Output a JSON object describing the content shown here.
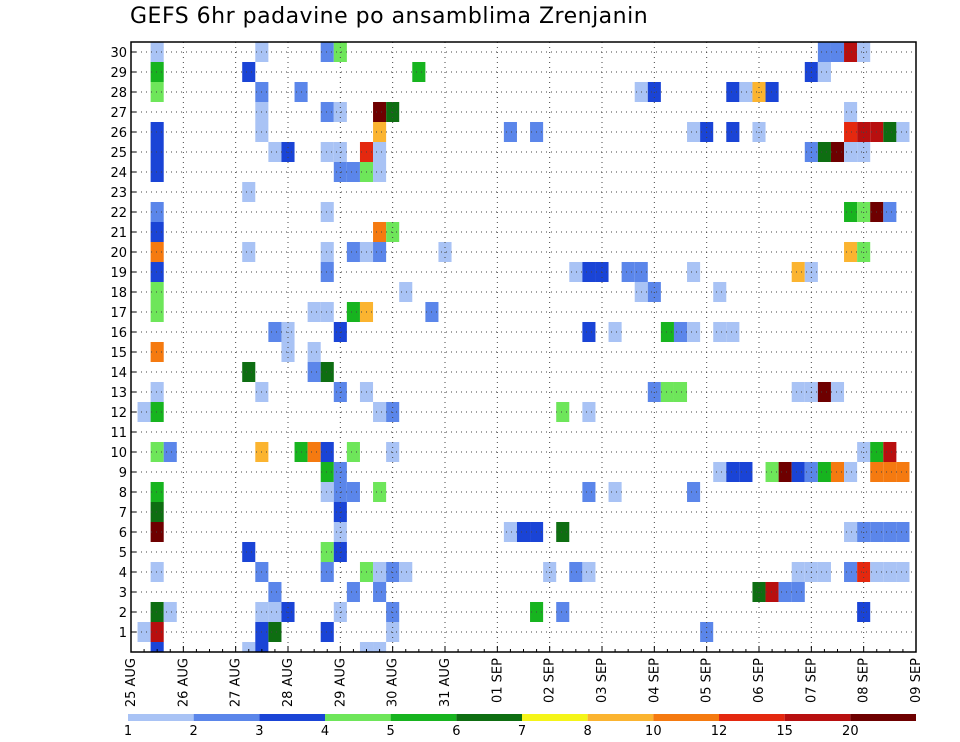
{
  "chart_data": {
    "type": "heatmap",
    "title": "GEFS 6hr padavine po ansamblima Zrenjanin",
    "xlabel": "",
    "ylabel": "",
    "y_ticks": [
      "1",
      "2",
      "3",
      "4",
      "5",
      "6",
      "7",
      "8",
      "9",
      "10",
      "11",
      "12",
      "13",
      "14",
      "15",
      "16",
      "17",
      "18",
      "19",
      "20",
      "21",
      "22",
      "23",
      "24",
      "25",
      "26",
      "27",
      "28",
      "29",
      "30"
    ],
    "x_ticks": [
      "25 AUG",
      "26 AUG",
      "27 AUG",
      "28 AUG",
      "29 AUG",
      "30 AUG",
      "31 AUG",
      "01 SEP",
      "02 SEP",
      "03 SEP",
      "04 SEP",
      "05 SEP",
      "06 SEP",
      "07 SEP",
      "08 SEP",
      "09 SEP"
    ],
    "x_range_days": [
      0,
      15
    ],
    "y_range": [
      0,
      30
    ],
    "grid": true,
    "legend": {
      "position": "bottom",
      "labels": [
        "1",
        "2",
        "3",
        "4",
        "5",
        "6",
        "7",
        "8",
        "10",
        "12",
        "15",
        "20"
      ],
      "colors": [
        "#a9c3f5",
        "#5b86ea",
        "#1a44d6",
        "#6ee65a",
        "#17b41f",
        "#0e6e12",
        "#f5f518",
        "#fbb430",
        "#f57a10",
        "#e4280f",
        "#b80f0f",
        "#6e0000"
      ]
    },
    "cells": [
      {
        "m": 30,
        "d": 0.5,
        "v": 1
      },
      {
        "m": 30,
        "d": 2.5,
        "v": 1
      },
      {
        "m": 30,
        "d": 3.75,
        "v": 2
      },
      {
        "m": 30,
        "d": 4.0,
        "v": 4
      },
      {
        "m": 30,
        "d": 13.25,
        "v": 2
      },
      {
        "m": 30,
        "d": 13.5,
        "v": 2
      },
      {
        "m": 30,
        "d": 13.75,
        "v": 15
      },
      {
        "m": 30,
        "d": 14.0,
        "v": 1
      },
      {
        "m": 29,
        "d": 0.5,
        "v": 5
      },
      {
        "m": 29,
        "d": 2.25,
        "v": 3
      },
      {
        "m": 29,
        "d": 5.5,
        "v": 5
      },
      {
        "m": 29,
        "d": 13.0,
        "v": 3
      },
      {
        "m": 29,
        "d": 13.25,
        "v": 1
      },
      {
        "m": 28,
        "d": 0.5,
        "v": 4
      },
      {
        "m": 28,
        "d": 2.5,
        "v": 2
      },
      {
        "m": 28,
        "d": 3.25,
        "v": 2
      },
      {
        "m": 28,
        "d": 9.75,
        "v": 1
      },
      {
        "m": 28,
        "d": 10.0,
        "v": 3
      },
      {
        "m": 28,
        "d": 11.5,
        "v": 3
      },
      {
        "m": 28,
        "d": 11.75,
        "v": 1
      },
      {
        "m": 28,
        "d": 12.0,
        "v": 8
      },
      {
        "m": 28,
        "d": 12.25,
        "v": 3
      },
      {
        "m": 27,
        "d": 2.5,
        "v": 1
      },
      {
        "m": 27,
        "d": 3.75,
        "v": 2
      },
      {
        "m": 27,
        "d": 4.0,
        "v": 1
      },
      {
        "m": 27,
        "d": 4.75,
        "v": 20
      },
      {
        "m": 27,
        "d": 5.0,
        "v": 6
      },
      {
        "m": 27,
        "d": 13.75,
        "v": 1
      },
      {
        "m": 26,
        "d": 0.5,
        "v": 3
      },
      {
        "m": 26,
        "d": 2.5,
        "v": 1
      },
      {
        "m": 26,
        "d": 4.75,
        "v": 8
      },
      {
        "m": 26,
        "d": 7.25,
        "v": 2
      },
      {
        "m": 26,
        "d": 7.75,
        "v": 2
      },
      {
        "m": 26,
        "d": 10.75,
        "v": 1
      },
      {
        "m": 26,
        "d": 11.0,
        "v": 3
      },
      {
        "m": 26,
        "d": 11.5,
        "v": 3
      },
      {
        "m": 26,
        "d": 12.0,
        "v": 1
      },
      {
        "m": 26,
        "d": 13.75,
        "v": 12
      },
      {
        "m": 26,
        "d": 14.0,
        "v": 15
      },
      {
        "m": 26,
        "d": 14.25,
        "v": 15
      },
      {
        "m": 26,
        "d": 14.5,
        "v": 6
      },
      {
        "m": 26,
        "d": 14.75,
        "v": 1
      },
      {
        "m": 25,
        "d": 0.5,
        "v": 3
      },
      {
        "m": 25,
        "d": 2.75,
        "v": 1
      },
      {
        "m": 25,
        "d": 3.0,
        "v": 3
      },
      {
        "m": 25,
        "d": 3.75,
        "v": 1
      },
      {
        "m": 25,
        "d": 4.0,
        "v": 1
      },
      {
        "m": 25,
        "d": 4.5,
        "v": 12
      },
      {
        "m": 25,
        "d": 4.75,
        "v": 1
      },
      {
        "m": 25,
        "d": 13.0,
        "v": 2
      },
      {
        "m": 25,
        "d": 13.25,
        "v": 6
      },
      {
        "m": 25,
        "d": 13.5,
        "v": 20
      },
      {
        "m": 25,
        "d": 13.75,
        "v": 1
      },
      {
        "m": 25,
        "d": 14.0,
        "v": 1
      },
      {
        "m": 24,
        "d": 0.5,
        "v": 3
      },
      {
        "m": 24,
        "d": 4.0,
        "v": 2
      },
      {
        "m": 24,
        "d": 4.25,
        "v": 2
      },
      {
        "m": 24,
        "d": 4.5,
        "v": 4
      },
      {
        "m": 24,
        "d": 4.75,
        "v": 1
      },
      {
        "m": 23,
        "d": 2.25,
        "v": 1
      },
      {
        "m": 22,
        "d": 0.5,
        "v": 2
      },
      {
        "m": 22,
        "d": 3.75,
        "v": 1
      },
      {
        "m": 22,
        "d": 13.75,
        "v": 5
      },
      {
        "m": 22,
        "d": 14.0,
        "v": 4
      },
      {
        "m": 22,
        "d": 14.25,
        "v": 20
      },
      {
        "m": 22,
        "d": 14.5,
        "v": 2
      },
      {
        "m": 21,
        "d": 0.5,
        "v": 3
      },
      {
        "m": 21,
        "d": 4.75,
        "v": 10
      },
      {
        "m": 21,
        "d": 5.0,
        "v": 4
      },
      {
        "m": 20,
        "d": 0.5,
        "v": 10
      },
      {
        "m": 20,
        "d": 2.25,
        "v": 1
      },
      {
        "m": 20,
        "d": 3.75,
        "v": 1
      },
      {
        "m": 20,
        "d": 4.25,
        "v": 2
      },
      {
        "m": 20,
        "d": 4.5,
        "v": 1
      },
      {
        "m": 20,
        "d": 4.75,
        "v": 2
      },
      {
        "m": 20,
        "d": 6.0,
        "v": 1
      },
      {
        "m": 20,
        "d": 13.75,
        "v": 8
      },
      {
        "m": 20,
        "d": 14.0,
        "v": 4
      },
      {
        "m": 19,
        "d": 0.5,
        "v": 3
      },
      {
        "m": 19,
        "d": 3.75,
        "v": 2
      },
      {
        "m": 19,
        "d": 8.5,
        "v": 1
      },
      {
        "m": 19,
        "d": 8.75,
        "v": 3
      },
      {
        "m": 19,
        "d": 9.0,
        "v": 3
      },
      {
        "m": 19,
        "d": 9.5,
        "v": 2
      },
      {
        "m": 19,
        "d": 9.75,
        "v": 2
      },
      {
        "m": 19,
        "d": 10.75,
        "v": 1
      },
      {
        "m": 19,
        "d": 12.75,
        "v": 8
      },
      {
        "m": 19,
        "d": 13.0,
        "v": 1
      },
      {
        "m": 18,
        "d": 0.5,
        "v": 4
      },
      {
        "m": 18,
        "d": 5.25,
        "v": 1
      },
      {
        "m": 18,
        "d": 9.75,
        "v": 1
      },
      {
        "m": 18,
        "d": 10.0,
        "v": 2
      },
      {
        "m": 18,
        "d": 11.25,
        "v": 1
      },
      {
        "m": 17,
        "d": 0.5,
        "v": 4
      },
      {
        "m": 17,
        "d": 3.5,
        "v": 1
      },
      {
        "m": 17,
        "d": 3.75,
        "v": 1
      },
      {
        "m": 17,
        "d": 4.25,
        "v": 5
      },
      {
        "m": 17,
        "d": 4.5,
        "v": 8
      },
      {
        "m": 17,
        "d": 5.75,
        "v": 2
      },
      {
        "m": 16,
        "d": 2.75,
        "v": 2
      },
      {
        "m": 16,
        "d": 3.0,
        "v": 1
      },
      {
        "m": 16,
        "d": 4.0,
        "v": 3
      },
      {
        "m": 16,
        "d": 8.75,
        "v": 3
      },
      {
        "m": 16,
        "d": 9.25,
        "v": 1
      },
      {
        "m": 16,
        "d": 10.25,
        "v": 5
      },
      {
        "m": 16,
        "d": 10.5,
        "v": 2
      },
      {
        "m": 16,
        "d": 10.75,
        "v": 1
      },
      {
        "m": 16,
        "d": 11.25,
        "v": 1
      },
      {
        "m": 16,
        "d": 11.5,
        "v": 1
      },
      {
        "m": 15,
        "d": 0.5,
        "v": 10
      },
      {
        "m": 15,
        "d": 3.0,
        "v": 1
      },
      {
        "m": 15,
        "d": 3.5,
        "v": 1
      },
      {
        "m": 14,
        "d": 2.25,
        "v": 6
      },
      {
        "m": 14,
        "d": 3.5,
        "v": 2
      },
      {
        "m": 14,
        "d": 3.75,
        "v": 6
      },
      {
        "m": 13,
        "d": 0.5,
        "v": 1
      },
      {
        "m": 13,
        "d": 2.5,
        "v": 1
      },
      {
        "m": 13,
        "d": 4.0,
        "v": 2
      },
      {
        "m": 13,
        "d": 4.5,
        "v": 1
      },
      {
        "m": 13,
        "d": 10.0,
        "v": 2
      },
      {
        "m": 13,
        "d": 10.25,
        "v": 4
      },
      {
        "m": 13,
        "d": 10.5,
        "v": 4
      },
      {
        "m": 13,
        "d": 12.75,
        "v": 1
      },
      {
        "m": 13,
        "d": 13.0,
        "v": 1
      },
      {
        "m": 13,
        "d": 13.25,
        "v": 20
      },
      {
        "m": 13,
        "d": 13.5,
        "v": 1
      },
      {
        "m": 12,
        "d": 0.25,
        "v": 1
      },
      {
        "m": 12,
        "d": 0.5,
        "v": 5
      },
      {
        "m": 12,
        "d": 4.75,
        "v": 1
      },
      {
        "m": 12,
        "d": 5.0,
        "v": 2
      },
      {
        "m": 12,
        "d": 8.25,
        "v": 4
      },
      {
        "m": 12,
        "d": 8.75,
        "v": 1
      },
      {
        "m": 10,
        "d": 0.5,
        "v": 4
      },
      {
        "m": 10,
        "d": 0.75,
        "v": 2
      },
      {
        "m": 10,
        "d": 2.5,
        "v": 8
      },
      {
        "m": 10,
        "d": 3.25,
        "v": 5
      },
      {
        "m": 10,
        "d": 3.5,
        "v": 10
      },
      {
        "m": 10,
        "d": 3.75,
        "v": 3
      },
      {
        "m": 10,
        "d": 4.25,
        "v": 4
      },
      {
        "m": 10,
        "d": 5.0,
        "v": 1
      },
      {
        "m": 10,
        "d": 14.0,
        "v": 1
      },
      {
        "m": 10,
        "d": 14.25,
        "v": 5
      },
      {
        "m": 10,
        "d": 14.5,
        "v": 15
      },
      {
        "m": 9,
        "d": 3.75,
        "v": 5
      },
      {
        "m": 9,
        "d": 4.0,
        "v": 2
      },
      {
        "m": 9,
        "d": 11.25,
        "v": 1
      },
      {
        "m": 9,
        "d": 11.5,
        "v": 3
      },
      {
        "m": 9,
        "d": 11.75,
        "v": 3
      },
      {
        "m": 9,
        "d": 12.25,
        "v": 4
      },
      {
        "m": 9,
        "d": 12.5,
        "v": 20
      },
      {
        "m": 9,
        "d": 12.75,
        "v": 3
      },
      {
        "m": 9,
        "d": 13.0,
        "v": 2
      },
      {
        "m": 9,
        "d": 13.25,
        "v": 5
      },
      {
        "m": 9,
        "d": 13.5,
        "v": 10
      },
      {
        "m": 9,
        "d": 13.75,
        "v": 1
      },
      {
        "m": 9,
        "d": 14.25,
        "v": 10
      },
      {
        "m": 9,
        "d": 14.5,
        "v": 10
      },
      {
        "m": 9,
        "d": 14.75,
        "v": 10
      },
      {
        "m": 8,
        "d": 0.5,
        "v": 5
      },
      {
        "m": 8,
        "d": 3.75,
        "v": 1
      },
      {
        "m": 8,
        "d": 4.0,
        "v": 2
      },
      {
        "m": 8,
        "d": 4.25,
        "v": 2
      },
      {
        "m": 8,
        "d": 4.75,
        "v": 4
      },
      {
        "m": 8,
        "d": 8.75,
        "v": 2
      },
      {
        "m": 8,
        "d": 9.25,
        "v": 1
      },
      {
        "m": 8,
        "d": 10.75,
        "v": 2
      },
      {
        "m": 7,
        "d": 0.5,
        "v": 6
      },
      {
        "m": 7,
        "d": 4.0,
        "v": 3
      },
      {
        "m": 6,
        "d": 0.5,
        "v": 20
      },
      {
        "m": 6,
        "d": 4.0,
        "v": 1
      },
      {
        "m": 6,
        "d": 7.25,
        "v": 1
      },
      {
        "m": 6,
        "d": 7.5,
        "v": 3
      },
      {
        "m": 6,
        "d": 7.75,
        "v": 3
      },
      {
        "m": 6,
        "d": 8.25,
        "v": 6
      },
      {
        "m": 6,
        "d": 13.75,
        "v": 1
      },
      {
        "m": 6,
        "d": 14.0,
        "v": 2
      },
      {
        "m": 6,
        "d": 14.25,
        "v": 2
      },
      {
        "m": 6,
        "d": 14.5,
        "v": 2
      },
      {
        "m": 6,
        "d": 14.75,
        "v": 2
      },
      {
        "m": 5,
        "d": 2.25,
        "v": 3
      },
      {
        "m": 5,
        "d": 3.75,
        "v": 4
      },
      {
        "m": 5,
        "d": 4.0,
        "v": 3
      },
      {
        "m": 4,
        "d": 0.5,
        "v": 1
      },
      {
        "m": 4,
        "d": 2.5,
        "v": 2
      },
      {
        "m": 4,
        "d": 3.75,
        "v": 2
      },
      {
        "m": 4,
        "d": 4.5,
        "v": 4
      },
      {
        "m": 4,
        "d": 4.75,
        "v": 1
      },
      {
        "m": 4,
        "d": 5.0,
        "v": 2
      },
      {
        "m": 4,
        "d": 5.25,
        "v": 1
      },
      {
        "m": 4,
        "d": 8.0,
        "v": 1
      },
      {
        "m": 4,
        "d": 8.5,
        "v": 2
      },
      {
        "m": 4,
        "d": 8.75,
        "v": 1
      },
      {
        "m": 4,
        "d": 12.75,
        "v": 1
      },
      {
        "m": 4,
        "d": 13.0,
        "v": 1
      },
      {
        "m": 4,
        "d": 13.25,
        "v": 1
      },
      {
        "m": 4,
        "d": 13.75,
        "v": 2
      },
      {
        "m": 4,
        "d": 14.0,
        "v": 12
      },
      {
        "m": 4,
        "d": 14.25,
        "v": 1
      },
      {
        "m": 4,
        "d": 14.5,
        "v": 1
      },
      {
        "m": 4,
        "d": 14.75,
        "v": 1
      },
      {
        "m": 3,
        "d": 2.75,
        "v": 2
      },
      {
        "m": 3,
        "d": 4.25,
        "v": 2
      },
      {
        "m": 3,
        "d": 4.75,
        "v": 2
      },
      {
        "m": 3,
        "d": 12.0,
        "v": 6
      },
      {
        "m": 3,
        "d": 12.25,
        "v": 15
      },
      {
        "m": 3,
        "d": 12.5,
        "v": 2
      },
      {
        "m": 3,
        "d": 12.75,
        "v": 2
      },
      {
        "m": 2,
        "d": 0.5,
        "v": 6
      },
      {
        "m": 2,
        "d": 0.75,
        "v": 1
      },
      {
        "m": 2,
        "d": 2.5,
        "v": 1
      },
      {
        "m": 2,
        "d": 2.75,
        "v": 1
      },
      {
        "m": 2,
        "d": 3.0,
        "v": 3
      },
      {
        "m": 2,
        "d": 4.0,
        "v": 1
      },
      {
        "m": 2,
        "d": 5.0,
        "v": 2
      },
      {
        "m": 2,
        "d": 7.75,
        "v": 5
      },
      {
        "m": 2,
        "d": 8.25,
        "v": 2
      },
      {
        "m": 2,
        "d": 14.0,
        "v": 3
      },
      {
        "m": 1,
        "d": 0.25,
        "v": 1
      },
      {
        "m": 1,
        "d": 0.5,
        "v": 15
      },
      {
        "m": 1,
        "d": 2.5,
        "v": 3
      },
      {
        "m": 1,
        "d": 2.75,
        "v": 6
      },
      {
        "m": 1,
        "d": 3.75,
        "v": 3
      },
      {
        "m": 1,
        "d": 5.0,
        "v": 1
      },
      {
        "m": 1,
        "d": 11.0,
        "v": 2
      },
      {
        "m": 0,
        "d": 0.5,
        "v": 3
      },
      {
        "m": 0,
        "d": 2.25,
        "v": 1
      },
      {
        "m": 0,
        "d": 2.5,
        "v": 3
      },
      {
        "m": 0,
        "d": 4.5,
        "v": 1
      },
      {
        "m": 0,
        "d": 4.75,
        "v": 1
      }
    ]
  }
}
